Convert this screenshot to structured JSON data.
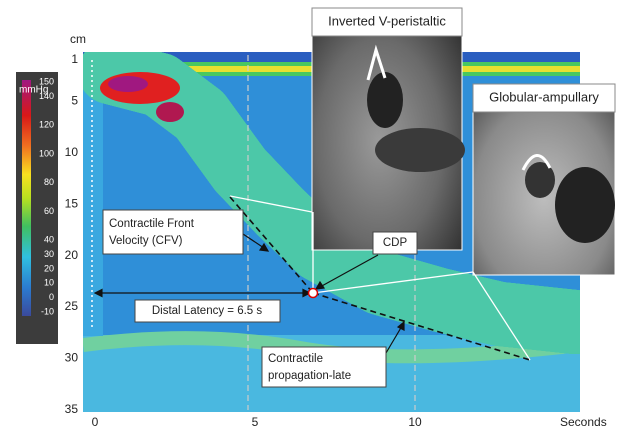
{
  "y_axis": {
    "unit": "cm",
    "ticks": [
      1,
      5,
      10,
      15,
      20,
      25,
      30,
      35
    ]
  },
  "x_axis": {
    "unit": "Seconds",
    "ticks": [
      0,
      5,
      10
    ]
  },
  "colorbar": {
    "unit": "mmHg",
    "ticks": [
      150,
      140,
      120,
      100,
      80,
      60,
      40,
      30,
      20,
      10,
      0,
      -10
    ]
  },
  "annotations": {
    "cfv": [
      "Contractile Front",
      "Velocity (CFV)"
    ],
    "cdp": "CDP",
    "distal_latency": "Distal Latency = 6.5 s",
    "propagation": [
      "Contractile",
      "propagation-late"
    ]
  },
  "insets": [
    {
      "label": "Inverted V-peristaltic"
    },
    {
      "label": "Globular-ampullary"
    }
  ]
}
